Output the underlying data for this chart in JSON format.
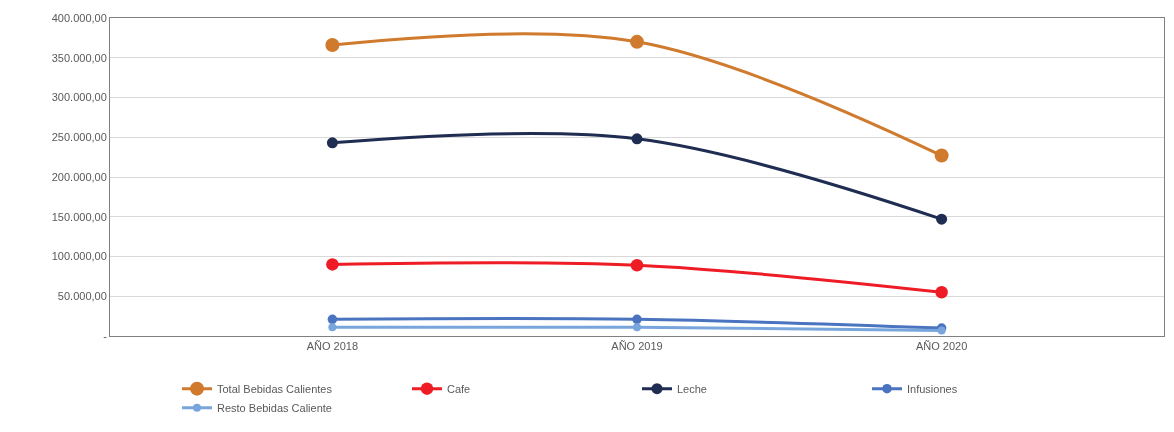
{
  "chart_data": {
    "type": "line",
    "categories": [
      "AÑO 2018",
      "AÑO 2019",
      "AÑO 2020"
    ],
    "series": [
      {
        "name": "Total Bebidas Calientes",
        "color": "#d07a2e",
        "values": [
          366000,
          370000,
          227000
        ]
      },
      {
        "name": "Cafe",
        "color": "#ee1c25",
        "values": [
          90000,
          89000,
          55000
        ]
      },
      {
        "name": "Leche",
        "color": "#1f2d52",
        "values": [
          243000,
          248000,
          147000
        ]
      },
      {
        "name": "Infusiones",
        "color": "#4a74c0",
        "values": [
          21000,
          21000,
          10000
        ]
      },
      {
        "name": "Resto Bebidas Caliente",
        "color": "#78a6dc",
        "values": [
          11000,
          11000,
          7000
        ]
      }
    ],
    "ylim": [
      0,
      400000
    ],
    "yticks": [
      {
        "value": 0,
        "label": "-"
      },
      {
        "value": 50000,
        "label": "50.000,00"
      },
      {
        "value": 100000,
        "label": "100.000,00"
      },
      {
        "value": 150000,
        "label": "150.000,00"
      },
      {
        "value": 200000,
        "label": "200.000,00"
      },
      {
        "value": 250000,
        "label": "250.000,00"
      },
      {
        "value": 300000,
        "label": "300.000,00"
      },
      {
        "value": 350000,
        "label": "350.000,00"
      },
      {
        "value": 400000,
        "label": "400.000,00"
      }
    ],
    "grid": "y",
    "legend": "bottom",
    "marker": "circle",
    "line_style": "solid"
  }
}
